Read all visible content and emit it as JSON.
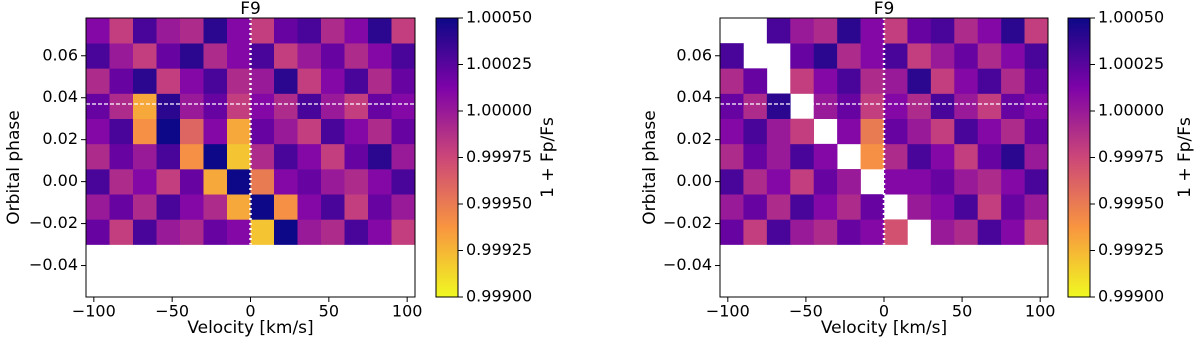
{
  "chart_data": [
    {
      "type": "heatmap",
      "title": "F9",
      "xlabel": "Velocity [km/s]",
      "ylabel": "Orbital phase",
      "xlim": [
        -105,
        105
      ],
      "ylim": [
        -0.055,
        0.078
      ],
      "xticks": [
        {
          "value": -100,
          "label": "−100"
        },
        {
          "value": -50,
          "label": "−50"
        },
        0,
        50,
        100
      ],
      "yticks": [
        {
          "value": -0.04,
          "label": "−0.04"
        },
        {
          "value": -0.02,
          "label": "−0.02"
        },
        {
          "value": 0,
          "label": "0.00"
        },
        0.02,
        0.04,
        0.06
      ],
      "x_bins": [
        -105,
        -90,
        -75,
        -60,
        -45,
        -30,
        -15,
        0,
        15,
        30,
        45,
        60,
        75,
        90,
        105
      ],
      "y_bins": [
        -0.03,
        -0.018,
        -0.006,
        0.006,
        0.018,
        0.03,
        0.042,
        0.054,
        0.066,
        0.078
      ],
      "z": [
        [
          1.0002,
          0.9998,
          1.0003,
          1.0,
          0.9999,
          1.0002,
          1.0001,
          0.9992,
          1.0005,
          1.0,
          0.9999,
          1.0003,
          1.0001,
          0.9998
        ],
        [
          1.0,
          1.0002,
          0.9999,
          1.0003,
          1.0001,
          0.9999,
          0.9993,
          1.0005,
          0.9994,
          1.0001,
          1.0003,
          0.9998,
          1.0002,
          1.0
        ],
        [
          1.0003,
          0.9999,
          1.0001,
          0.9998,
          1.0002,
          0.9993,
          1.0005,
          0.9995,
          1.0001,
          1.0002,
          1.0,
          0.9999,
          1.0001,
          1.0003
        ],
        [
          0.9999,
          1.0002,
          1.0,
          1.0003,
          0.9994,
          1.0005,
          0.9992,
          0.9999,
          1.0003,
          1.0001,
          0.9998,
          1.0002,
          1.0004,
          1.0
        ],
        [
          1.0001,
          1.0003,
          0.9994,
          1.0005,
          0.9996,
          1.0001,
          0.9993,
          1.0002,
          1.0,
          0.9998,
          1.0003,
          1.0001,
          0.9999,
          1.0002
        ],
        [
          1.0002,
          0.9999,
          0.9993,
          1.0004,
          1.0,
          1.0002,
          0.9998,
          1.0001,
          0.9999,
          1.0003,
          1.0,
          0.9998,
          1.0002,
          1.0001
        ],
        [
          0.9999,
          1.0002,
          1.0004,
          0.9998,
          1.0001,
          1.0003,
          0.9999,
          1.0,
          1.0004,
          0.9998,
          1.0001,
          1.0003,
          0.9999,
          1.0002
        ],
        [
          1.0003,
          1.0,
          0.9998,
          1.0002,
          1.0004,
          0.9999,
          1.0001,
          1.0003,
          0.9998,
          1.0,
          1.0002,
          0.9999,
          1.0001,
          1.0003
        ],
        [
          1.0001,
          0.9998,
          1.0003,
          1.0,
          0.9999,
          1.0004,
          1.0001,
          0.9998,
          1.0002,
          1.0003,
          0.9999,
          1.0001,
          1.0004,
          0.9998
        ]
      ],
      "vline": 0,
      "hline": 0.037,
      "colormap": "plasma_r",
      "colorbar": {
        "label": "1 + Fp/Fs",
        "lim": [
          0.999,
          1.0005
        ],
        "ticks": [
          {
            "value": 0.999,
            "label": "0.99900"
          },
          0.99925,
          {
            "value": 0.9995,
            "label": "0.99950"
          },
          0.99975,
          {
            "value": 1.0,
            "label": "1.00000"
          },
          1.00025,
          {
            "value": 1.0005,
            "label": "1.00050"
          }
        ]
      }
    },
    {
      "type": "heatmap",
      "title": "F9",
      "xlabel": "Velocity [km/s]",
      "ylabel": "Orbital phase",
      "xlim": [
        -105,
        105
      ],
      "ylim": [
        -0.055,
        0.078
      ],
      "xticks": [
        {
          "value": -100,
          "label": "−100"
        },
        {
          "value": -50,
          "label": "−50"
        },
        0,
        50,
        100
      ],
      "yticks": [
        {
          "value": -0.04,
          "label": "−0.04"
        },
        {
          "value": -0.02,
          "label": "−0.02"
        },
        {
          "value": 0,
          "label": "0.00"
        },
        0.02,
        0.04,
        0.06
      ],
      "x_bins": [
        -105,
        -90,
        -75,
        -60,
        -45,
        -30,
        -15,
        0,
        15,
        30,
        45,
        60,
        75,
        90,
        105
      ],
      "y_bins": [
        -0.03,
        -0.018,
        -0.006,
        0.006,
        0.018,
        0.03,
        0.042,
        0.054,
        0.066,
        0.078
      ],
      "z": [
        [
          1.0002,
          0.9998,
          1.0003,
          1.0,
          0.9999,
          1.0002,
          1.0001,
          0.9997,
          null,
          1.0,
          0.9999,
          1.0003,
          1.0001,
          0.9998
        ],
        [
          1.0,
          1.0002,
          0.9999,
          1.0003,
          1.0001,
          0.9999,
          1.0002,
          null,
          1.0,
          1.0001,
          1.0003,
          0.9998,
          1.0002,
          1.0
        ],
        [
          1.0003,
          0.9999,
          1.0001,
          0.9998,
          1.0002,
          1.0,
          null,
          1.0001,
          1.0001,
          1.0002,
          1.0,
          0.9999,
          1.0001,
          1.0003
        ],
        [
          0.9999,
          1.0002,
          1.0,
          1.0003,
          1.0001,
          null,
          0.9994,
          0.9999,
          1.0003,
          1.0001,
          0.9998,
          1.0002,
          1.0004,
          1.0
        ],
        [
          1.0001,
          1.0003,
          1.0,
          0.9998,
          null,
          1.0001,
          0.9995,
          1.0002,
          1.0,
          0.9998,
          1.0003,
          1.0001,
          0.9999,
          1.0002
        ],
        [
          1.0002,
          0.9999,
          1.0004,
          null,
          1.0,
          1.0002,
          0.9998,
          1.0001,
          0.9999,
          1.0003,
          1.0,
          0.9998,
          1.0002,
          1.0001
        ],
        [
          0.9999,
          1.0002,
          null,
          0.9998,
          1.0001,
          1.0003,
          0.9999,
          1.0,
          1.0004,
          0.9998,
          1.0001,
          1.0003,
          0.9999,
          1.0002
        ],
        [
          1.0003,
          null,
          null,
          1.0002,
          1.0004,
          0.9999,
          1.0001,
          1.0003,
          0.9998,
          1.0,
          1.0002,
          0.9999,
          1.0001,
          1.0003
        ],
        [
          null,
          null,
          1.0003,
          1.0,
          0.9999,
          1.0004,
          1.0001,
          0.9998,
          1.0002,
          1.0003,
          0.9999,
          1.0001,
          1.0004,
          0.9998
        ]
      ],
      "vline": 0,
      "hline": 0.037,
      "colormap": "plasma_r",
      "colorbar": {
        "label": "1 + Fp/Fs",
        "lim": [
          0.999,
          1.0005
        ],
        "ticks": [
          {
            "value": 0.999,
            "label": "0.99900"
          },
          0.99925,
          {
            "value": 0.9995,
            "label": "0.99950"
          },
          0.99975,
          {
            "value": 1.0,
            "label": "1.00000"
          },
          1.00025,
          {
            "value": 1.0005,
            "label": "1.00050"
          }
        ]
      }
    }
  ]
}
